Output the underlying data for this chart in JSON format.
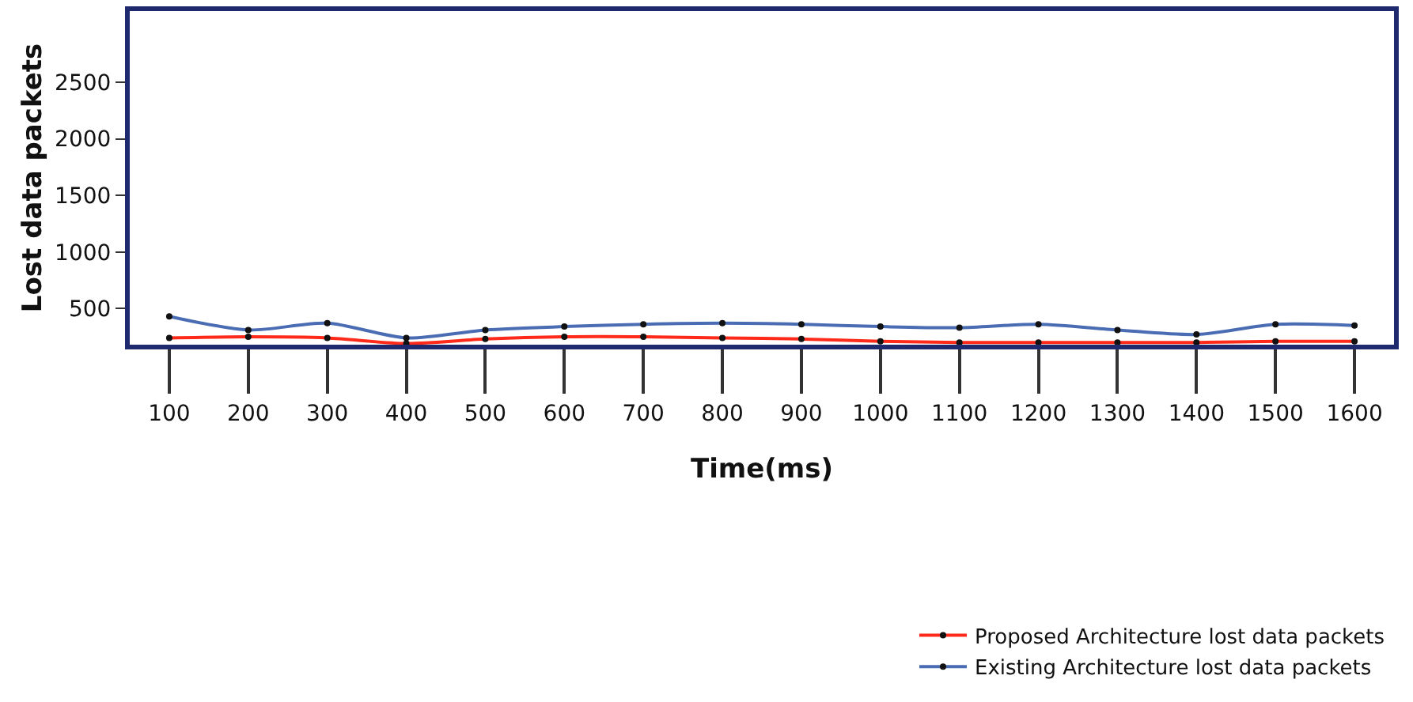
{
  "chart_data": {
    "type": "line",
    "xlabel": "Time(ms)",
    "ylabel": "Lost data packets",
    "categories": [
      "100",
      "200",
      "300",
      "400",
      "500",
      "600",
      "700",
      "800",
      "900",
      "1000",
      "1100",
      "1200",
      "1300",
      "1400",
      "1500",
      "1600"
    ],
    "series": [
      {
        "name": "Proposed Architecture lost data packets",
        "color": "#ff2a1a",
        "values": [
          240,
          250,
          240,
          190,
          230,
          250,
          250,
          240,
          230,
          210,
          200,
          200,
          200,
          200,
          210,
          210
        ]
      },
      {
        "name": "Existing Architecture lost data packets",
        "color": "#4a6cb3",
        "values": [
          430,
          310,
          370,
          240,
          310,
          340,
          360,
          370,
          360,
          340,
          330,
          360,
          310,
          270,
          360,
          350
        ]
      }
    ],
    "ylim": [
      180,
      3130
    ],
    "yticks": [
      500,
      1000,
      1500,
      2000,
      2500
    ],
    "legend": "bottom right",
    "marker": "circle",
    "line_style": "solid"
  }
}
